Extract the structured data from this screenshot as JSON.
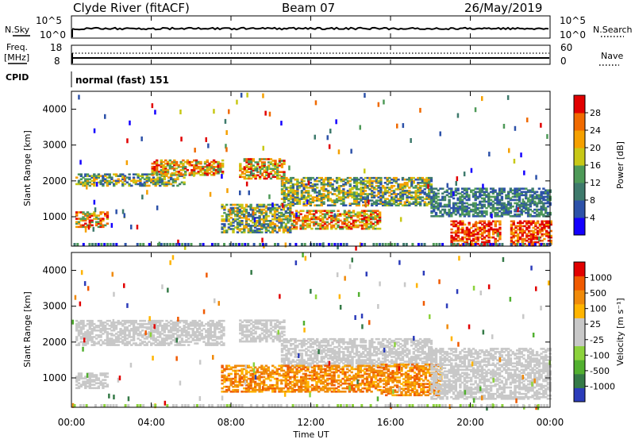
{
  "header": {
    "station": "Clyde River (fitACF)",
    "beam": "Beam 07",
    "date": "26/May/2019"
  },
  "top_panels": {
    "nsky_label": "N.Sky",
    "nsky_ticks": [
      "10^5",
      "10^0"
    ],
    "nsearch_label": "N.Search",
    "nsearch_ticks": [
      "10^5",
      "10^0"
    ],
    "freq_label_1": "Freq.",
    "freq_label_2": "[MHz]",
    "freq_ticks": [
      "18",
      "8"
    ],
    "nave_label": "Nave",
    "nave_ticks": [
      "60",
      "0"
    ],
    "cpid_label": "CPID",
    "cpid_value": "normal (fast) 151"
  },
  "colors": {
    "power_scale": [
      "#1400ff",
      "#2d52a9",
      "#3e7a6c",
      "#4e9a58",
      "#c8c816",
      "#f5a000",
      "#f06a00",
      "#e10000"
    ],
    "velocity_scale": [
      "#2c3cba",
      "#357a47",
      "#52b030",
      "#8cd23c",
      "#c8c8c8",
      "#c8c8c8",
      "#ffb400",
      "#f08a0a",
      "#f05a00",
      "#e10000"
    ],
    "gray": "#c8c8c8"
  },
  "chart_data": [
    {
      "type": "heatmap",
      "title": "",
      "xlabel": "Time UT",
      "ylabel": "Slant Range [km]",
      "xlim": [
        "00:00",
        "24:00"
      ],
      "ylim": [
        180,
        4500
      ],
      "x_ticks": [
        "00:00",
        "04:00",
        "08:00",
        "12:00",
        "16:00",
        "20:00",
        "00:00"
      ],
      "y_ticks": [
        "1000",
        "2000",
        "3000",
        "4000"
      ],
      "colorbar": {
        "label": "Power [dB]",
        "ticks": [
          "4",
          "8",
          "12",
          "16",
          "20",
          "24",
          "28"
        ],
        "range": [
          0,
          30
        ]
      },
      "echo_regions": [
        {
          "t0": 0.2,
          "t1": 5.6,
          "r0": 1850,
          "r1": 2200,
          "level": "medium"
        },
        {
          "t0": 4.0,
          "t1": 7.6,
          "r0": 2150,
          "r1": 2600,
          "level": "high"
        },
        {
          "t0": 0.2,
          "t1": 1.8,
          "r0": 700,
          "r1": 1150,
          "level": "high"
        },
        {
          "t0": 8.4,
          "t1": 10.6,
          "r0": 2050,
          "r1": 2600,
          "level": "high"
        },
        {
          "t0": 10.5,
          "t1": 18.0,
          "r0": 1300,
          "r1": 2100,
          "level": "medium"
        },
        {
          "t0": 7.5,
          "t1": 11.0,
          "r0": 550,
          "r1": 1350,
          "level": "medium"
        },
        {
          "t0": 11.0,
          "t1": 15.5,
          "r0": 650,
          "r1": 1150,
          "level": "high"
        },
        {
          "t0": 18.0,
          "t1": 24.0,
          "r0": 1000,
          "r1": 1800,
          "level": "low"
        },
        {
          "t0": 19.0,
          "t1": 21.5,
          "r0": 180,
          "r1": 900,
          "level": "max"
        },
        {
          "t0": 22.0,
          "t1": 24.0,
          "r0": 180,
          "r1": 900,
          "level": "max"
        }
      ]
    },
    {
      "type": "heatmap",
      "title": "",
      "xlabel": "Time UT",
      "ylabel": "Slant Range [km]",
      "xlim": [
        "00:00",
        "24:00"
      ],
      "ylim": [
        180,
        4500
      ],
      "x_ticks": [
        "00:00",
        "04:00",
        "08:00",
        "12:00",
        "16:00",
        "20:00",
        "00:00"
      ],
      "y_ticks": [
        "1000",
        "2000",
        "3000",
        "4000"
      ],
      "colorbar": {
        "label": "Velocity [m s⁻¹]",
        "ticks": [
          "1000",
          "500",
          "100",
          "25",
          "-25",
          "-100",
          "-500",
          "-1000"
        ]
      },
      "echo_regions": [
        {
          "t0": 0.2,
          "t1": 7.6,
          "r0": 1900,
          "r1": 2600,
          "level": "ground"
        },
        {
          "t0": 8.4,
          "t1": 10.6,
          "r0": 2000,
          "r1": 2600,
          "level": "ground"
        },
        {
          "t0": 10.5,
          "t1": 18.0,
          "r0": 1300,
          "r1": 2100,
          "level": "ground"
        },
        {
          "t0": 7.5,
          "t1": 15.5,
          "r0": 600,
          "r1": 1350,
          "level": "away"
        },
        {
          "t0": 15.5,
          "t1": 18.5,
          "r0": 500,
          "r1": 1400,
          "level": "away"
        },
        {
          "t0": 0.2,
          "t1": 1.8,
          "r0": 700,
          "r1": 1150,
          "level": "ground"
        },
        {
          "t0": 18.0,
          "t1": 24.0,
          "r0": 400,
          "r1": 1800,
          "level": "ground"
        }
      ]
    }
  ]
}
